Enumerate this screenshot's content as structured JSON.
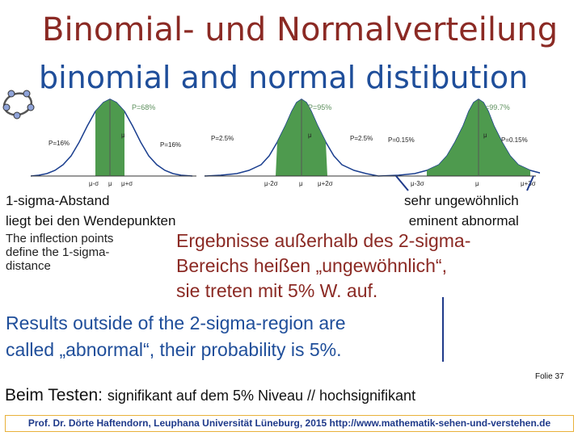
{
  "title": {
    "german": "Binomial- und Normalverteilung",
    "english": "binomial and normal distibution"
  },
  "figure": {
    "panels": [
      {
        "area_label": "P=68%",
        "left_tail": "P=16%",
        "right_tail": "P=16%",
        "mu": "μ",
        "axis_left": "μ-σ",
        "axis_mid": "μ",
        "axis_right": "μ+σ"
      },
      {
        "area_label": "P=95%",
        "left_tail": "P=2.5%",
        "right_tail": "P=2.5%",
        "mu": "μ",
        "axis_left": "μ-2σ",
        "axis_mid": "μ",
        "axis_right": "μ+2σ"
      },
      {
        "area_label": "P=99.7%",
        "left_tail": "P=0.15%",
        "right_tail": "P=0.15%",
        "mu": "μ",
        "axis_left": "μ-3σ",
        "axis_mid": "μ",
        "axis_right": "μ+3σ"
      }
    ],
    "fill_color": "#4e9a4e",
    "curve_color": "#1b3f8f"
  },
  "notes": {
    "left_de_line1": "1-sigma-Abstand",
    "left_de_line2": "liegt bei den Wendepunkten",
    "left_en_line1": "The inflection points",
    "left_en_line2": "define the 1-sigma-",
    "left_en_line3": "distance",
    "right_line1": "sehr ungewöhnlich",
    "right_line2": "eminent abnormal"
  },
  "main": {
    "de_line1": "Ergebnisse außerhalb des 2-sigma-",
    "de_line2": "Bereichs heißen „ungewöhnlich“,",
    "de_line3": "sie treten mit 5% W. auf.",
    "en_line1": "Results outside of the  2-sigma-region are",
    "en_line2": "called  „abnormal“, their probability is 5%."
  },
  "slide_number": "Folie  37",
  "testing": {
    "prefix": "Beim Testen:",
    "text": "signifikant auf dem 5% Niveau  //  hochsignifikant"
  },
  "footer": "Prof. Dr. Dörte Haftendorn, Leuphana Universität Lüneburg, 2015  http://www.mathematik-sehen-und-verstehen.de"
}
